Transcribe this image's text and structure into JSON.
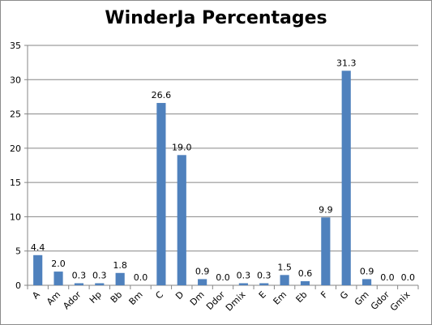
{
  "chart_data": {
    "type": "bar",
    "title": "WinderJa Percentages",
    "xlabel": "",
    "ylabel": "",
    "ylim": [
      0,
      35
    ],
    "yticks": [
      "0",
      "5",
      "10",
      "15",
      "20",
      "25",
      "30",
      "35"
    ],
    "grid": true,
    "legend": "none",
    "bar_color": "#4f81bd",
    "categories": [
      "A",
      "Am",
      "Ador",
      "Hp",
      "Bb",
      "Bm",
      "C",
      "D",
      "Dm",
      "Ddor",
      "Dmix",
      "E",
      "Em",
      "Eb",
      "F",
      "G",
      "Gm",
      "Gdor",
      "Gmix"
    ],
    "values": [
      4.4,
      2.0,
      0.3,
      0.3,
      1.8,
      0.0,
      26.6,
      19.0,
      0.9,
      0.0,
      0.3,
      0.3,
      1.5,
      0.6,
      9.9,
      31.3,
      0.9,
      0.0,
      0.0
    ],
    "data_labels": [
      "4.4",
      "2.0",
      "0.3",
      "0.3",
      "1.8",
      "0.0",
      "26.6",
      "19.0",
      "0.9",
      "0.0",
      "0.3",
      "0.3",
      "1.5",
      "0.6",
      "9.9",
      "31.3",
      "0.9",
      "0.0",
      "0.0"
    ]
  }
}
